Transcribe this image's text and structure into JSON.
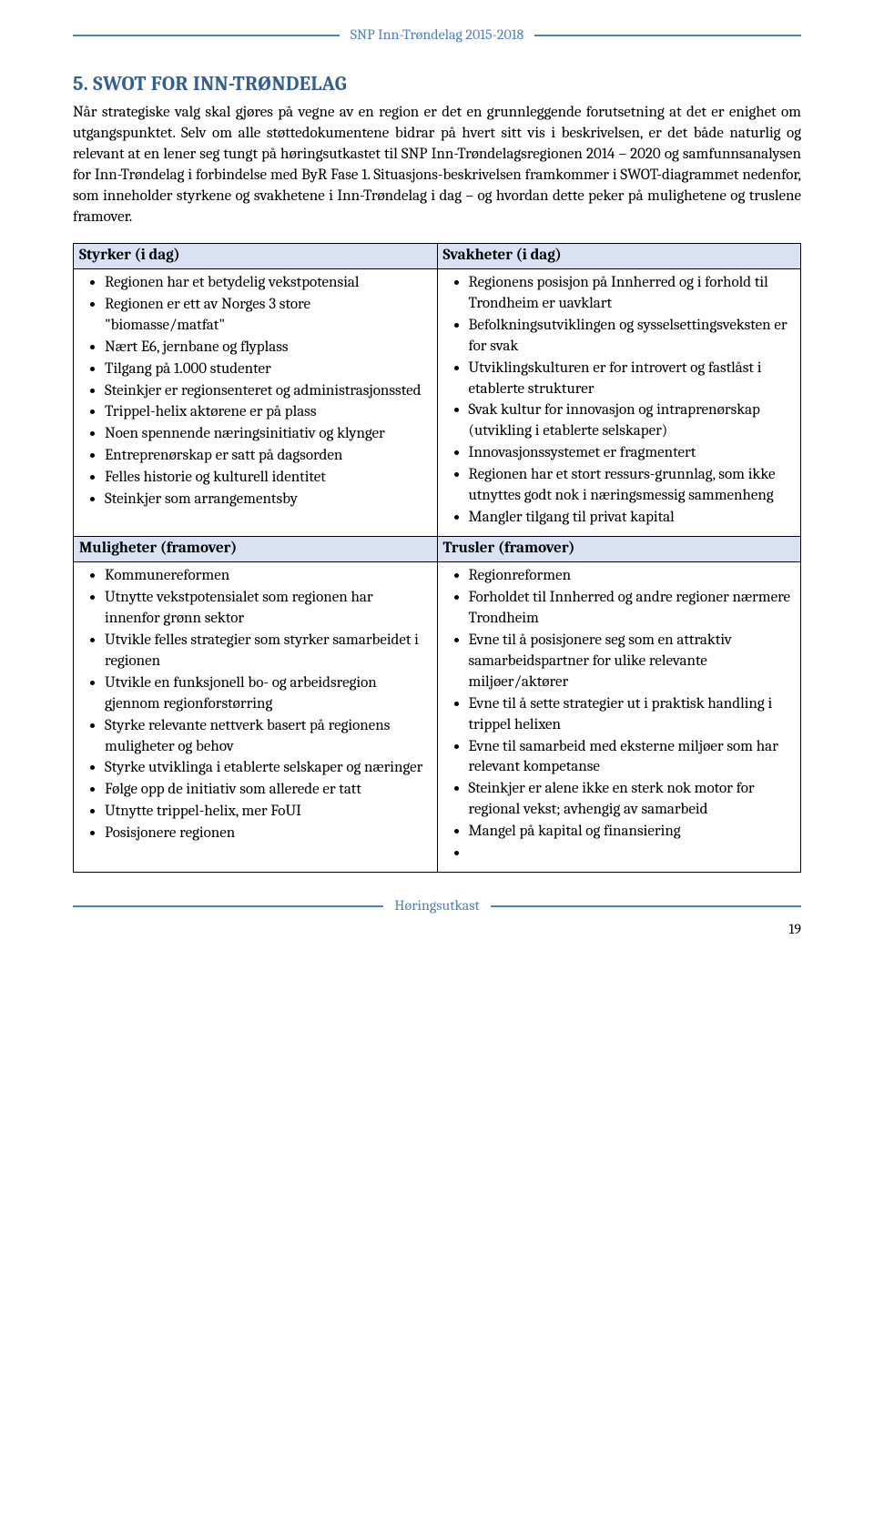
{
  "header": {
    "title": "SNP Inn-Trøndelag 2015-2018"
  },
  "section": {
    "title": "5. SWOT FOR INN-TRØNDELAG"
  },
  "intro": "Når strategiske valg skal gjøres på vegne av en region er det en grunnleggende forutsetning at det er enighet om utgangspunktet. Selv om alle støttedokumentene bidrar på hvert sitt vis i beskrivelsen, er det både naturlig og relevant at en lener seg tungt på høringsutkastet til SNP Inn-Trøndelagsregionen 2014 – 2020 og samfunnsanalysen for Inn-Trøndelag i forbindelse med ByR Fase 1. Situasjons-beskrivelsen framkommer i SWOT-diagrammet nedenfor, som inneholder styrkene og svakhetene i Inn-Trøndelag i dag – og hvordan dette peker på mulighetene og truslene framover.",
  "swot": {
    "strengths": {
      "heading": "Styrker (i dag)",
      "items": [
        "Regionen har et betydelig vekstpotensial",
        "Regionen er ett av Norges 3 store \"biomasse/matfat\"",
        "Nært E6, jernbane og flyplass",
        "Tilgang på 1.000 studenter",
        "Steinkjer er regionsenteret og administrasjonssted",
        "Trippel-helix aktørene er på plass",
        "Noen spennende næringsinitiativ og klynger",
        "Entreprenørskap er satt på dagsorden",
        "Felles historie og kulturell identitet",
        "Steinkjer som arrangementsby"
      ]
    },
    "weaknesses": {
      "heading": "Svakheter (i dag)",
      "items": [
        "Regionens posisjon på Innherred og i forhold til Trondheim er uavklart",
        "Befolkningsutviklingen og sysselsettingsveksten er for svak",
        "Utviklingskulturen er for introvert og fastlåst i etablerte strukturer",
        "Svak kultur for innovasjon og intraprenørskap (utvikling i etablerte selskaper)",
        "Innovasjonssystemet er fragmentert",
        "Regionen har et stort ressurs-grunnlag, som ikke utnyttes godt nok i næringsmessig sammenheng",
        "Mangler tilgang til privat kapital"
      ]
    },
    "opportunities": {
      "heading": "Muligheter (framover)",
      "items": [
        "Kommunereformen",
        "Utnytte vekstpotensialet som regionen har innenfor grønn sektor",
        "Utvikle felles strategier som styrker samarbeidet i regionen",
        "Utvikle en funksjonell bo- og arbeidsregion gjennom regionforstørring",
        "Styrke relevante nettverk basert på regionens muligheter og behov",
        "Styrke utviklinga i etablerte selskaper og næringer",
        "Følge opp de initiativ som allerede er tatt",
        "Utnytte trippel-helix,  mer FoUI",
        "Posisjonere regionen"
      ]
    },
    "threats": {
      "heading": "Trusler (framover)",
      "items": [
        "Regionreformen",
        "Forholdet til Innherred og andre regioner nærmere Trondheim",
        "Evne til å posisjonere seg som en attraktiv samarbeidspartner for ulike relevante miljøer/aktører",
        "Evne til å sette strategier ut i praktisk handling i trippel helixen",
        "Evne til samarbeid med eksterne miljøer som har relevant kompetanse",
        "Steinkjer er alene ikke en sterk nok motor for regional vekst; avhengig av samarbeid",
        "Mangel på kapital og finansiering",
        ""
      ]
    }
  },
  "footer": {
    "label": "Høringsutkast",
    "page": "19"
  },
  "colors": {
    "accent": "#4f81bd",
    "heading": "#365f91",
    "th_bg": "#d9e1f2",
    "border": "#000000"
  }
}
